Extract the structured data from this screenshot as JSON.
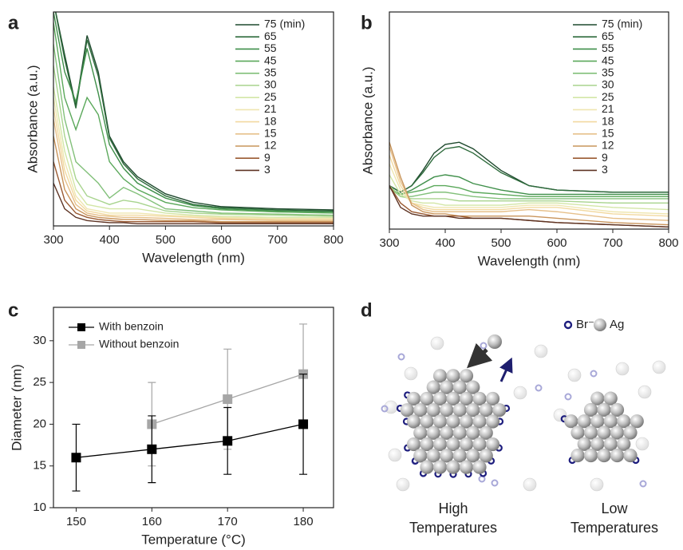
{
  "chart_data": [
    {
      "type": "line",
      "label": "a",
      "xlabel": "Wavelength (nm)",
      "ylabel": "Absorbance (a.u.)",
      "x": [
        300,
        320,
        340,
        360,
        380,
        400,
        425,
        450,
        500,
        550,
        600,
        700,
        800
      ],
      "xlim": [
        300,
        800
      ],
      "xticks": [
        300,
        400,
        500,
        600,
        700,
        800
      ],
      "ylim": [
        0,
        1
      ],
      "series": [
        {
          "name": "75 (min)",
          "color": "#1f4a2e",
          "values": [
            1.05,
            0.8,
            0.56,
            0.89,
            0.72,
            0.42,
            0.3,
            0.23,
            0.15,
            0.11,
            0.09,
            0.08,
            0.075
          ]
        },
        {
          "name": "65",
          "color": "#2e6b3c",
          "values": [
            1.05,
            0.78,
            0.55,
            0.87,
            0.7,
            0.41,
            0.29,
            0.22,
            0.14,
            0.1,
            0.085,
            0.075,
            0.07
          ]
        },
        {
          "name": "55",
          "color": "#3f8f4a",
          "values": [
            1.0,
            0.72,
            0.58,
            0.83,
            0.62,
            0.38,
            0.27,
            0.2,
            0.13,
            0.095,
            0.08,
            0.07,
            0.065
          ]
        },
        {
          "name": "45",
          "color": "#5aa85a",
          "values": [
            0.95,
            0.6,
            0.45,
            0.6,
            0.52,
            0.3,
            0.22,
            0.17,
            0.11,
            0.085,
            0.075,
            0.065,
            0.06
          ]
        },
        {
          "name": "35",
          "color": "#82c07a",
          "values": [
            0.85,
            0.5,
            0.3,
            0.25,
            0.2,
            0.13,
            0.18,
            0.15,
            0.08,
            0.07,
            0.06,
            0.055,
            0.05
          ]
        },
        {
          "name": "30",
          "color": "#a8d48e",
          "values": [
            0.75,
            0.42,
            0.22,
            0.14,
            0.12,
            0.1,
            0.12,
            0.11,
            0.07,
            0.06,
            0.055,
            0.05,
            0.045
          ]
        },
        {
          "name": "25",
          "color": "#d3e6a6",
          "values": [
            0.65,
            0.35,
            0.17,
            0.1,
            0.09,
            0.08,
            0.08,
            0.08,
            0.06,
            0.05,
            0.045,
            0.04,
            0.04
          ]
        },
        {
          "name": "21",
          "color": "#efe6b0",
          "values": [
            0.6,
            0.3,
            0.14,
            0.08,
            0.07,
            0.06,
            0.06,
            0.06,
            0.05,
            0.045,
            0.04,
            0.035,
            0.035
          ]
        },
        {
          "name": "18",
          "color": "#f2d9a0",
          "values": [
            0.55,
            0.26,
            0.12,
            0.07,
            0.06,
            0.05,
            0.05,
            0.05,
            0.045,
            0.04,
            0.035,
            0.03,
            0.03
          ]
        },
        {
          "name": "15",
          "color": "#e6c08a",
          "values": [
            0.5,
            0.22,
            0.1,
            0.06,
            0.05,
            0.045,
            0.04,
            0.04,
            0.035,
            0.03,
            0.03,
            0.025,
            0.025
          ]
        },
        {
          "name": "12",
          "color": "#c9955c",
          "values": [
            0.42,
            0.17,
            0.08,
            0.05,
            0.04,
            0.035,
            0.03,
            0.03,
            0.025,
            0.025,
            0.02,
            0.02,
            0.02
          ]
        },
        {
          "name": "9",
          "color": "#9a5a32",
          "values": [
            0.3,
            0.12,
            0.06,
            0.04,
            0.03,
            0.025,
            0.02,
            0.02,
            0.02,
            0.02,
            0.015,
            0.015,
            0.015
          ]
        },
        {
          "name": "3",
          "color": "#5e3424",
          "values": [
            0.2,
            0.08,
            0.04,
            0.025,
            0.02,
            0.015,
            0.015,
            0.01,
            0.01,
            0.01,
            0.01,
            0.01,
            0.01
          ]
        }
      ]
    },
    {
      "type": "line",
      "label": "b",
      "xlabel": "Wavelength (nm)",
      "ylabel": "Absorbance (a.u.)",
      "x": [
        300,
        320,
        340,
        360,
        380,
        400,
        425,
        450,
        500,
        550,
        600,
        700,
        800
      ],
      "xlim": [
        300,
        800
      ],
      "xticks": [
        300,
        400,
        500,
        600,
        700,
        800
      ],
      "ylim": [
        0,
        1
      ],
      "series": [
        {
          "name": "75 (min)",
          "color": "#1f4a2e",
          "values": [
            0.2,
            0.17,
            0.2,
            0.27,
            0.35,
            0.39,
            0.4,
            0.37,
            0.27,
            0.2,
            0.18,
            0.17,
            0.17
          ]
        },
        {
          "name": "65",
          "color": "#2e6b3c",
          "values": [
            0.2,
            0.17,
            0.2,
            0.26,
            0.33,
            0.37,
            0.38,
            0.35,
            0.26,
            0.2,
            0.18,
            0.17,
            0.17
          ]
        },
        {
          "name": "55",
          "color": "#3f8f4a",
          "values": [
            0.19,
            0.16,
            0.18,
            0.21,
            0.24,
            0.25,
            0.24,
            0.21,
            0.18,
            0.16,
            0.16,
            0.16,
            0.16
          ]
        },
        {
          "name": "45",
          "color": "#5aa85a",
          "values": [
            0.19,
            0.16,
            0.17,
            0.18,
            0.2,
            0.2,
            0.19,
            0.17,
            0.16,
            0.15,
            0.15,
            0.15,
            0.15
          ]
        },
        {
          "name": "35",
          "color": "#82c07a",
          "values": [
            0.19,
            0.15,
            0.15,
            0.16,
            0.17,
            0.17,
            0.16,
            0.15,
            0.14,
            0.14,
            0.14,
            0.14,
            0.14
          ]
        },
        {
          "name": "30",
          "color": "#a8d48e",
          "values": [
            0.2,
            0.15,
            0.14,
            0.14,
            0.14,
            0.14,
            0.13,
            0.13,
            0.13,
            0.13,
            0.13,
            0.12,
            0.12
          ]
        },
        {
          "name": "25",
          "color": "#d3e6a6",
          "values": [
            0.25,
            0.16,
            0.13,
            0.12,
            0.12,
            0.11,
            0.11,
            0.11,
            0.11,
            0.12,
            0.12,
            0.1,
            0.09
          ]
        },
        {
          "name": "21",
          "color": "#efe6b0",
          "values": [
            0.3,
            0.18,
            0.12,
            0.11,
            0.1,
            0.1,
            0.1,
            0.1,
            0.1,
            0.11,
            0.11,
            0.08,
            0.07
          ]
        },
        {
          "name": "18",
          "color": "#f2d9a0",
          "values": [
            0.34,
            0.2,
            0.12,
            0.1,
            0.09,
            0.09,
            0.09,
            0.09,
            0.09,
            0.1,
            0.1,
            0.07,
            0.06
          ]
        },
        {
          "name": "15",
          "color": "#e6c08a",
          "values": [
            0.38,
            0.22,
            0.12,
            0.09,
            0.08,
            0.08,
            0.08,
            0.08,
            0.08,
            0.09,
            0.08,
            0.05,
            0.04
          ]
        },
        {
          "name": "12",
          "color": "#c9955c",
          "values": [
            0.4,
            0.24,
            0.11,
            0.08,
            0.07,
            0.07,
            0.06,
            0.06,
            0.06,
            0.06,
            0.05,
            0.03,
            0.02
          ]
        },
        {
          "name": "9",
          "color": "#9a5a32",
          "values": [
            0.2,
            0.12,
            0.08,
            0.07,
            0.06,
            0.06,
            0.06,
            0.05,
            0.05,
            0.04,
            0.03,
            0.02,
            0.01
          ]
        },
        {
          "name": "3",
          "color": "#5e3424",
          "values": [
            0.2,
            0.1,
            0.07,
            0.06,
            0.06,
            0.06,
            0.05,
            0.05,
            0.05,
            0.04,
            0.03,
            0.02,
            0.01
          ]
        }
      ]
    },
    {
      "type": "errorbar",
      "label": "c",
      "xlabel": "Temperature (°C)",
      "ylabel": "Diameter (nm)",
      "xlim": [
        147,
        184
      ],
      "xticks": [
        150,
        160,
        170,
        180
      ],
      "ylim": [
        10,
        34
      ],
      "yticks": [
        10,
        15,
        20,
        25,
        30
      ],
      "series": [
        {
          "name": "With benzoin",
          "color": "#000000",
          "x": [
            150,
            160,
            170,
            180
          ],
          "values": [
            16,
            17,
            18,
            20
          ],
          "errors": [
            4,
            4,
            4,
            6
          ]
        },
        {
          "name": "Without benzoin",
          "color": "#a6a6a6",
          "x": [
            160,
            170,
            180
          ],
          "values": [
            20,
            23,
            26
          ],
          "errors": [
            5,
            6,
            6
          ]
        }
      ]
    }
  ],
  "diagram": {
    "label": "d",
    "legend": [
      "Br⁻",
      "Ag"
    ],
    "captions": [
      [
        "High",
        "Temperatures"
      ],
      [
        "Low",
        "Temperatures"
      ]
    ]
  }
}
